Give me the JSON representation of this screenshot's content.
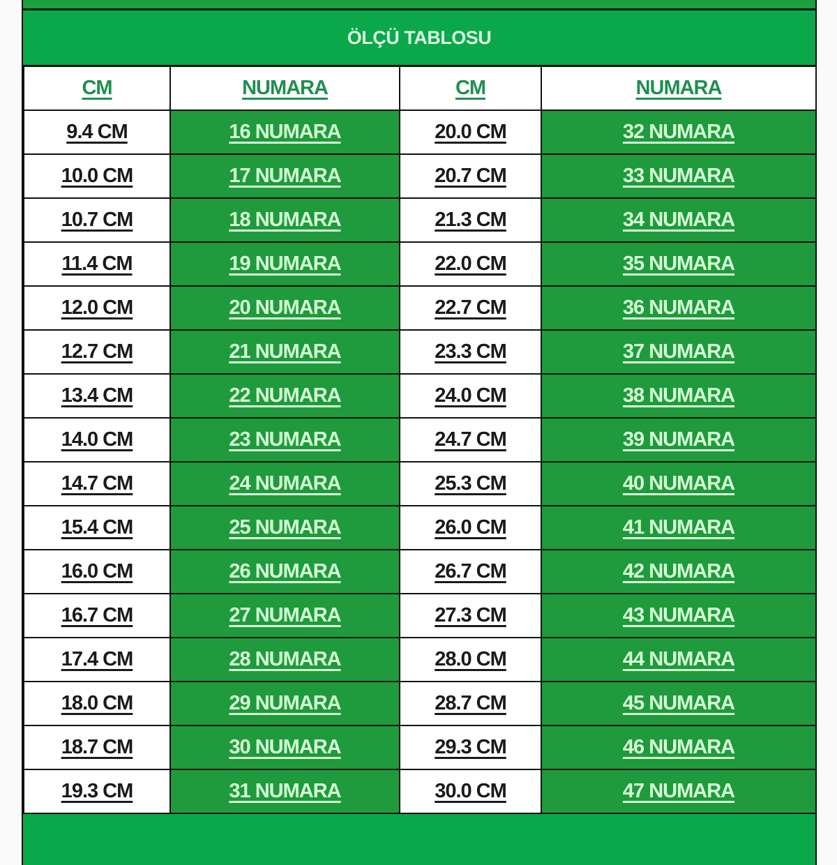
{
  "title": "ÖLÇÜ TABLOSU",
  "headers": [
    "CM",
    "NUMARA",
    "CM",
    "NUMARA"
  ],
  "colors": {
    "title_bg": "#0aa84a",
    "number_cell_bg": "#1f9a3c",
    "number_text": "#d6ffd6",
    "header_text": "#1f8f4f"
  },
  "rows": [
    [
      "9.4 CM",
      "16 NUMARA",
      "20.0 CM",
      "32 NUMARA"
    ],
    [
      "10.0 CM",
      "17 NUMARA",
      "20.7 CM",
      "33 NUMARA"
    ],
    [
      "10.7 CM",
      "18 NUMARA",
      "21.3 CM",
      "34 NUMARA"
    ],
    [
      "11.4 CM",
      "19 NUMARA",
      "22.0 CM",
      "35 NUMARA"
    ],
    [
      "12.0 CM",
      "20 NUMARA",
      "22.7 CM",
      "36 NUMARA"
    ],
    [
      "12.7 CM",
      "21 NUMARA",
      "23.3 CM",
      "37 NUMARA"
    ],
    [
      "13.4 CM",
      "22 NUMARA",
      "24.0 CM",
      "38 NUMARA"
    ],
    [
      "14.0 CM",
      "23 NUMARA",
      "24.7 CM",
      "39 NUMARA"
    ],
    [
      "14.7 CM",
      "24 NUMARA",
      "25.3 CM",
      "40 NUMARA"
    ],
    [
      "15.4 CM",
      "25 NUMARA",
      "26.0 CM",
      "41 NUMARA"
    ],
    [
      "16.0 CM",
      "26 NUMARA",
      "26.7 CM",
      "42 NUMARA"
    ],
    [
      "16.7 CM",
      "27 NUMARA",
      "27.3 CM",
      "43 NUMARA"
    ],
    [
      "17.4 CM",
      "28 NUMARA",
      "28.0 CM",
      "44 NUMARA"
    ],
    [
      "18.0 CM",
      "29 NUMARA",
      "28.7 CM",
      "45 NUMARA"
    ],
    [
      "18.7 CM",
      "30 NUMARA",
      "29.3 CM",
      "46 NUMARA"
    ],
    [
      "19.3 CM",
      "31 NUMARA",
      "30.0 CM",
      "47 NUMARA"
    ]
  ]
}
